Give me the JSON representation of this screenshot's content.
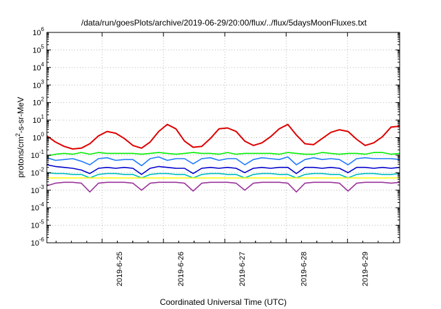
{
  "chart_data": {
    "type": "line",
    "title": "/data/run/goesPlots/archive/2019-06-29/20:00/flux/../flux/5daysMoonFluxes.txt",
    "xlabel": "Coordinated Universal Time (UTC)",
    "ylabel_parts": {
      "base": "protons/cm",
      "sup": "2",
      "rest": "-s-sr-MeV"
    },
    "yscale": "log",
    "ylim_exp": [
      -6,
      6
    ],
    "y_tick_exponents": [
      -6,
      -5,
      -4,
      -3,
      -2,
      -1,
      0,
      1,
      2,
      3,
      4,
      5,
      6
    ],
    "xlim_days": [
      -0.9,
      4.85
    ],
    "x_ticks": [
      {
        "label": "2019-6-25",
        "day": 0
      },
      {
        "label": "2019-6-26",
        "day": 1
      },
      {
        "label": "2019-6-27",
        "day": 2
      },
      {
        "label": "2019-6-28",
        "day": 3
      },
      {
        "label": "2019-6-29",
        "day": 4
      }
    ],
    "grid": true,
    "series": [
      {
        "color": "#dd0000",
        "log10_values": [
          0.1,
          -0.25,
          -0.5,
          -0.65,
          -0.6,
          -0.35,
          0.1,
          0.35,
          0.25,
          -0.05,
          -0.45,
          -0.6,
          -0.25,
          0.35,
          0.75,
          0.5,
          -0.2,
          -0.55,
          -0.5,
          -0.05,
          0.5,
          0.55,
          0.35,
          -0.2,
          -0.45,
          -0.3,
          0.05,
          0.5,
          0.75,
          0.15,
          -0.35,
          -0.4,
          -0.05,
          0.3,
          0.45,
          0.35,
          -0.1,
          -0.45,
          -0.3,
          0.05,
          0.6,
          0.65
        ]
      },
      {
        "color": "#00ee00",
        "log10_values": [
          -1.05,
          -0.95,
          -0.9,
          -0.95,
          -0.85,
          -0.95,
          -0.85,
          -0.9,
          -0.9,
          -0.9,
          -0.9,
          -0.95,
          -0.9,
          -0.85,
          -0.9,
          -0.95,
          -0.9,
          -0.85,
          -0.9,
          -0.9,
          -0.95,
          -0.85,
          -0.95,
          -0.9,
          -0.9,
          -0.9,
          -0.9,
          -0.95,
          -0.85,
          -0.9,
          -0.95,
          -0.95,
          -0.85,
          -0.9,
          -0.95,
          -0.9,
          -0.9,
          -0.95,
          -0.85,
          -0.85,
          -0.95,
          -0.9
        ]
      },
      {
        "color": "#1e7bff",
        "log10_values": [
          -1.15,
          -1.3,
          -1.25,
          -1.2,
          -1.35,
          -1.55,
          -1.2,
          -1.15,
          -1.3,
          -1.25,
          -1.25,
          -1.6,
          -1.2,
          -1.1,
          -1.3,
          -1.2,
          -1.2,
          -1.5,
          -1.2,
          -1.15,
          -1.3,
          -1.2,
          -1.2,
          -1.55,
          -1.25,
          -1.15,
          -1.2,
          -1.25,
          -1.1,
          -1.55,
          -1.25,
          -1.15,
          -1.25,
          -1.2,
          -1.25,
          -1.55,
          -1.2,
          -1.15,
          -1.2,
          -1.2,
          -1.2,
          -1.25
        ]
      },
      {
        "color": "#0000cc",
        "log10_values": [
          -1.55,
          -1.65,
          -1.7,
          -1.75,
          -1.85,
          -2.05,
          -1.75,
          -1.7,
          -1.75,
          -1.7,
          -1.75,
          -2.1,
          -1.75,
          -1.65,
          -1.7,
          -1.75,
          -1.75,
          -2.05,
          -1.75,
          -1.7,
          -1.75,
          -1.7,
          -1.75,
          -2.0,
          -1.75,
          -1.7,
          -1.75,
          -1.7,
          -1.7,
          -2.05,
          -1.7,
          -1.7,
          -1.75,
          -1.7,
          -1.75,
          -2.0,
          -1.7,
          -1.7,
          -1.75,
          -1.7,
          -1.75,
          -1.7
        ]
      },
      {
        "color": "#00bbbb",
        "log10_values": [
          -2.0,
          -2.05,
          -2.05,
          -2.1,
          -2.1,
          -2.3,
          -2.1,
          -2.05,
          -2.05,
          -2.1,
          -2.1,
          -2.3,
          -2.1,
          -2.05,
          -2.05,
          -2.1,
          -2.1,
          -2.3,
          -2.1,
          -2.05,
          -2.05,
          -2.1,
          -2.1,
          -2.3,
          -2.1,
          -2.05,
          -2.05,
          -2.1,
          -2.1,
          -2.3,
          -2.1,
          -2.05,
          -2.05,
          -2.1,
          -2.1,
          -2.3,
          -2.1,
          -2.05,
          -2.05,
          -2.1,
          -2.1,
          -2.05
        ]
      },
      {
        "color": "#ffff00",
        "log10_values": [
          -2.3,
          -2.3,
          -2.3,
          -2.3,
          -2.3,
          -2.3,
          -2.3,
          -2.3,
          -2.3,
          -2.3,
          -2.3,
          -2.3,
          -2.3,
          -2.3,
          -2.3,
          -2.3,
          -2.3,
          -2.3,
          -2.3,
          -2.3,
          -2.3,
          -2.3,
          -2.3,
          -2.3,
          -2.3,
          -2.3,
          -2.3,
          -2.3,
          -2.3,
          -2.3,
          -2.3,
          -2.3,
          -2.3,
          -2.3,
          -2.3,
          -2.3,
          -2.3,
          -2.3,
          -2.3,
          -2.3,
          -2.3,
          -2.3
        ]
      },
      {
        "color": "#993399",
        "log10_values": [
          -2.75,
          -2.6,
          -2.55,
          -2.55,
          -2.6,
          -3.1,
          -2.6,
          -2.55,
          -2.55,
          -2.55,
          -2.6,
          -3.0,
          -2.6,
          -2.55,
          -2.55,
          -2.55,
          -2.6,
          -3.05,
          -2.6,
          -2.55,
          -2.55,
          -2.55,
          -2.6,
          -3.0,
          -2.6,
          -2.55,
          -2.55,
          -2.55,
          -2.6,
          -3.1,
          -2.6,
          -2.55,
          -2.55,
          -2.55,
          -2.6,
          -3.05,
          -2.6,
          -2.55,
          -2.55,
          -2.55,
          -2.6,
          -2.55
        ]
      }
    ]
  }
}
